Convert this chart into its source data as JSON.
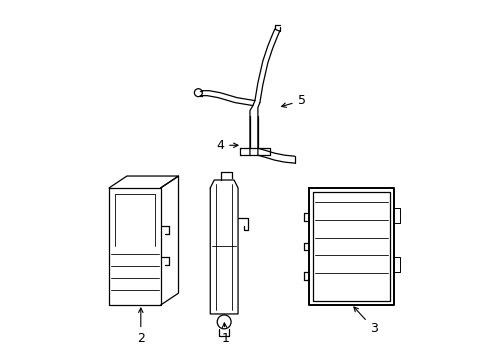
{
  "background_color": "#ffffff",
  "line_color": "#000000",
  "label_color": "#000000",
  "figsize": [
    4.89,
    3.6
  ],
  "dpi": 100,
  "arrow_color": "#000000",
  "lw": 0.9
}
